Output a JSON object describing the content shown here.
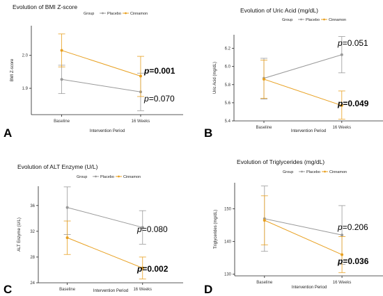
{
  "colors": {
    "placebo": "#999999",
    "cinnamon": "#E8A020"
  },
  "chart_data": [
    {
      "type": "line",
      "panel_letter": "A",
      "title": "Evolution of BMI Z-score",
      "legend_title": "Group",
      "legend_position": "top",
      "xlabel": "Intervention Period",
      "ylabel": "BMI Z-score",
      "categories": [
        "Baseline",
        "16 Weeks"
      ],
      "ylim": [
        1.82,
        2.09
      ],
      "yticks": [
        1.9,
        2.0
      ],
      "ytick_labels": [
        "1.9",
        "2.0"
      ],
      "grid": false,
      "series": [
        {
          "name": "Placebo",
          "values": [
            1.927,
            1.889
          ],
          "err_low": [
            1.884,
            1.832
          ],
          "err_high": [
            1.97,
            1.946
          ],
          "p_prefix": "p",
          "p_value": "=0.070",
          "p_bold": false
        },
        {
          "name": "Cinnamon",
          "values": [
            2.015,
            1.937
          ],
          "err_low": [
            1.965,
            1.875
          ],
          "err_high": [
            2.065,
            1.997
          ],
          "p_prefix": "p",
          "p_value": "=0.001",
          "p_bold": true
        }
      ]
    },
    {
      "type": "line",
      "panel_letter": "B",
      "title": "Evolution of Uric Acid (mg/dL)",
      "legend_title": "Group",
      "legend_position": "top",
      "xlabel": "Intervention Period",
      "ylabel": "Uric Acid (mg/dL)",
      "categories": [
        "Baseline",
        "16 Weeks"
      ],
      "ylim": [
        5.4,
        6.35
      ],
      "yticks": [
        5.4,
        5.6,
        5.8,
        6.0,
        6.2
      ],
      "ytick_labels": [
        "5.4",
        "5.6",
        "5.8",
        "6.0",
        "6.2"
      ],
      "grid": false,
      "series": [
        {
          "name": "Placebo",
          "values": [
            5.87,
            6.13
          ],
          "err_low": [
            5.64,
            5.93
          ],
          "err_high": [
            6.09,
            6.33
          ],
          "p_prefix": "p",
          "p_value": "=0.051",
          "p_bold": false
        },
        {
          "name": "Cinnamon",
          "values": [
            5.86,
            5.57
          ],
          "err_low": [
            5.65,
            5.42
          ],
          "err_high": [
            6.07,
            5.73
          ],
          "p_prefix": "p",
          "p_value": "=0.049",
          "p_bold": true
        }
      ]
    },
    {
      "type": "line",
      "panel_letter": "C",
      "title": "Evolution of ALT Enzyme (U/L)",
      "legend_title": "Group",
      "legend_position": "top",
      "xlabel": "Intervention Period",
      "ylabel": "ALT Enzyme (U/L)",
      "categories": [
        "Baseline",
        "16 Weeks"
      ],
      "ylim": [
        24,
        39
      ],
      "yticks": [
        24,
        28,
        32,
        36
      ],
      "ytick_labels": [
        "24",
        "28",
        "32",
        "36"
      ],
      "grid": false,
      "series": [
        {
          "name": "Placebo",
          "values": [
            35.7,
            32.6
          ],
          "err_low": [
            31.5,
            30.0
          ],
          "err_high": [
            38.9,
            35.2
          ],
          "p_prefix": "p",
          "p_value": "=0.080",
          "p_bold": false
        },
        {
          "name": "Cinnamon",
          "values": [
            31.0,
            26.3
          ],
          "err_low": [
            28.4,
            24.6
          ],
          "err_high": [
            33.6,
            28.0
          ],
          "p_prefix": "p",
          "p_value": "=0.002",
          "p_bold": true
        }
      ]
    },
    {
      "type": "line",
      "panel_letter": "D",
      "title": "Evolution of Triglycerides (mg/dL)",
      "legend_title": "Group",
      "legend_position": "top",
      "xlabel": "Intervention Period",
      "ylabel": "Triglycerides (mg/dL)",
      "categories": [
        "Baseline",
        "16 Weeks"
      ],
      "ylim": [
        129.5,
        158
      ],
      "yticks": [
        130,
        140,
        150
      ],
      "ytick_labels": [
        "130",
        "140",
        "150"
      ],
      "grid": false,
      "series": [
        {
          "name": "Placebo",
          "values": [
            147.0,
            142.0
          ],
          "err_low": [
            137.0,
            133.0
          ],
          "err_high": [
            157.0,
            151.0
          ],
          "p_prefix": "p",
          "p_value": "=0.206",
          "p_bold": false
        },
        {
          "name": "Cinnamon",
          "values": [
            146.5,
            136.0
          ],
          "err_low": [
            139.0,
            130.5
          ],
          "err_high": [
            154.0,
            141.5
          ],
          "p_prefix": "p",
          "p_value": "=0.036",
          "p_bold": true
        }
      ]
    }
  ]
}
